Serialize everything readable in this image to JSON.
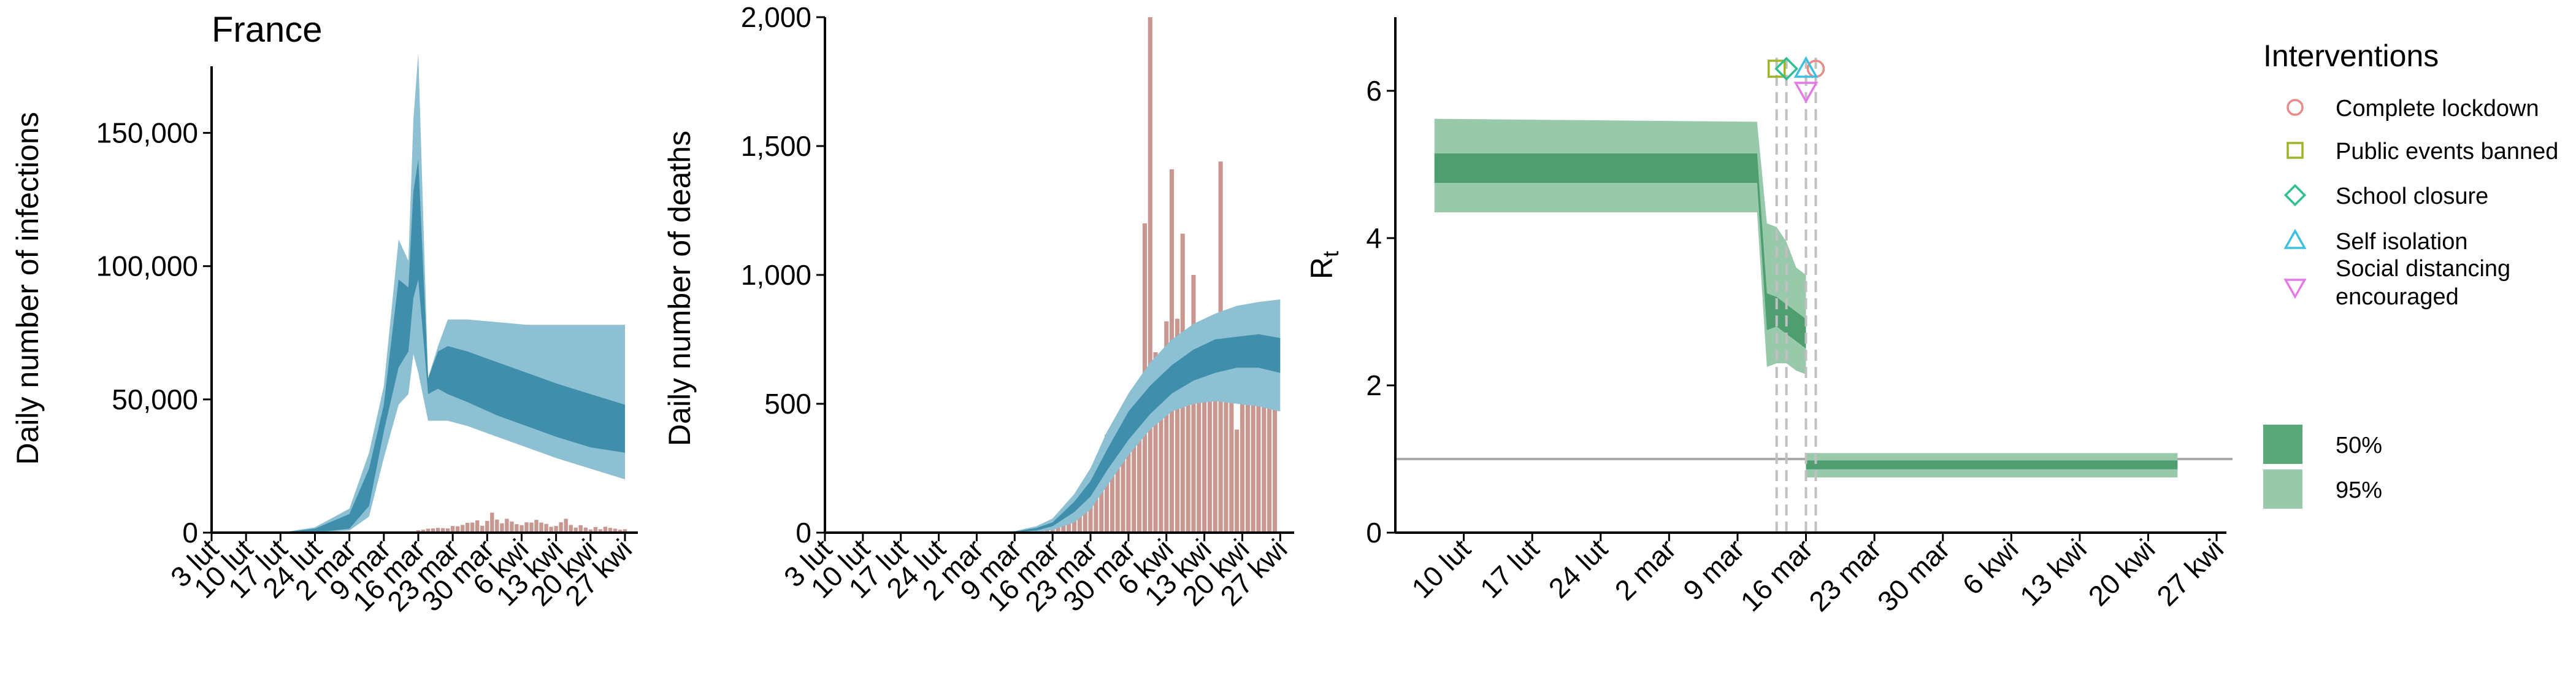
{
  "chart_data": [
    {
      "type": "area",
      "title": "France",
      "ylabel": "Daily number of infections",
      "xlabel": "",
      "ylim": [
        0,
        175000
      ],
      "yticks": [
        0,
        50000,
        100000,
        150000
      ],
      "ytick_labels": [
        "0",
        "50,000",
        "100,000",
        "150,000"
      ],
      "date_range": [
        "2020-02-03",
        "2020-04-29"
      ],
      "xticks": [
        "2020-02-03",
        "2020-02-10",
        "2020-02-17",
        "2020-02-24",
        "2020-03-02",
        "2020-03-09",
        "2020-03-16",
        "2020-03-23",
        "2020-03-30",
        "2020-04-06",
        "2020-04-13",
        "2020-04-20",
        "2020-04-27"
      ],
      "xtick_labels": [
        "3 lut",
        "10 lut",
        "17 lut",
        "24 lut",
        "2 mar",
        "9 mar",
        "16 mar",
        "23 mar",
        "30 mar",
        "6 kwi",
        "13 kwi",
        "20 kwi",
        "27 kwi"
      ],
      "colors": {
        "band95": "#8cc0d2",
        "band50": "#3f8eac",
        "bars": "#c9978f"
      },
      "band95": [
        [
          "2020-02-17",
          0,
          0
        ],
        [
          "2020-02-24",
          0,
          2000
        ],
        [
          "2020-03-02",
          800,
          9000
        ],
        [
          "2020-03-06",
          6000,
          30000
        ],
        [
          "2020-03-09",
          28000,
          55000
        ],
        [
          "2020-03-12",
          48000,
          110000
        ],
        [
          "2020-03-14",
          52000,
          102000
        ],
        [
          "2020-03-15",
          67000,
          155000
        ],
        [
          "2020-03-16",
          60000,
          180000
        ],
        [
          "2020-03-18",
          42000,
          58000
        ],
        [
          "2020-03-20",
          42000,
          70000
        ],
        [
          "2020-03-22",
          42000,
          80000
        ],
        [
          "2020-03-26",
          40000,
          80000
        ],
        [
          "2020-04-01",
          36000,
          79000
        ],
        [
          "2020-04-07",
          32000,
          78000
        ],
        [
          "2020-04-13",
          28000,
          78000
        ],
        [
          "2020-04-20",
          24000,
          78000
        ],
        [
          "2020-04-27",
          20000,
          78000
        ]
      ],
      "band50": [
        [
          "2020-02-17",
          0,
          0
        ],
        [
          "2020-02-24",
          0,
          1500
        ],
        [
          "2020-03-02",
          1500,
          7000
        ],
        [
          "2020-03-06",
          10000,
          24000
        ],
        [
          "2020-03-09",
          38000,
          48000
        ],
        [
          "2020-03-12",
          62000,
          95000
        ],
        [
          "2020-03-14",
          68000,
          92000
        ],
        [
          "2020-03-15",
          88000,
          128000
        ],
        [
          "2020-03-16",
          95000,
          140000
        ],
        [
          "2020-03-18",
          52000,
          58000
        ],
        [
          "2020-03-20",
          54000,
          68000
        ],
        [
          "2020-03-22",
          52000,
          70000
        ],
        [
          "2020-03-26",
          49000,
          68000
        ],
        [
          "2020-04-01",
          44000,
          64000
        ],
        [
          "2020-04-07",
          40000,
          60000
        ],
        [
          "2020-04-13",
          36000,
          56000
        ],
        [
          "2020-04-20",
          32000,
          52000
        ],
        [
          "2020-04-27",
          30000,
          48000
        ]
      ],
      "bars": [
        [
          "2020-03-16",
          900
        ],
        [
          "2020-03-17",
          1100
        ],
        [
          "2020-03-18",
          1500
        ],
        [
          "2020-03-19",
          1600
        ],
        [
          "2020-03-20",
          1800
        ],
        [
          "2020-03-21",
          1700
        ],
        [
          "2020-03-22",
          1600
        ],
        [
          "2020-03-23",
          2500
        ],
        [
          "2020-03-24",
          2400
        ],
        [
          "2020-03-25",
          2900
        ],
        [
          "2020-03-26",
          3700
        ],
        [
          "2020-03-27",
          3800
        ],
        [
          "2020-03-28",
          4600
        ],
        [
          "2020-03-29",
          2600
        ],
        [
          "2020-03-30",
          4400
        ],
        [
          "2020-03-31",
          7500
        ],
        [
          "2020-04-01",
          4900
        ],
        [
          "2020-04-02",
          3500
        ],
        [
          "2020-04-03",
          5200
        ],
        [
          "2020-04-04",
          4200
        ],
        [
          "2020-04-05",
          3200
        ],
        [
          "2020-04-06",
          2800
        ],
        [
          "2020-04-07",
          3900
        ],
        [
          "2020-04-08",
          3800
        ],
        [
          "2020-04-09",
          4800
        ],
        [
          "2020-04-10",
          3800
        ],
        [
          "2020-04-11",
          3300
        ],
        [
          "2020-04-12",
          2200
        ],
        [
          "2020-04-13",
          2500
        ],
        [
          "2020-04-14",
          3900
        ],
        [
          "2020-04-15",
          5200
        ],
        [
          "2020-04-16",
          2900
        ],
        [
          "2020-04-17",
          1900
        ],
        [
          "2020-04-18",
          2800
        ],
        [
          "2020-04-19",
          1900
        ],
        [
          "2020-04-20",
          1200
        ],
        [
          "2020-04-21",
          2100
        ],
        [
          "2020-04-22",
          1300
        ],
        [
          "2020-04-23",
          2200
        ],
        [
          "2020-04-24",
          1800
        ],
        [
          "2020-04-25",
          1500
        ],
        [
          "2020-04-26",
          1100
        ],
        [
          "2020-04-27",
          1300
        ]
      ]
    },
    {
      "type": "bar",
      "title": "",
      "ylabel": "Daily number of deaths",
      "xlabel": "",
      "ylim": [
        0,
        2000
      ],
      "yticks": [
        0,
        500,
        1000,
        1500,
        2000
      ],
      "ytick_labels": [
        "0",
        "500",
        "1,000",
        "1,500",
        "2,000"
      ],
      "date_range": [
        "2020-02-03",
        "2020-04-29"
      ],
      "xticks": [
        "2020-02-03",
        "2020-02-10",
        "2020-02-17",
        "2020-02-24",
        "2020-03-02",
        "2020-03-09",
        "2020-03-16",
        "2020-03-23",
        "2020-03-30",
        "2020-04-06",
        "2020-04-13",
        "2020-04-20",
        "2020-04-27"
      ],
      "xtick_labels": [
        "3 lut",
        "10 lut",
        "17 lut",
        "24 lut",
        "2 mar",
        "9 mar",
        "16 mar",
        "23 mar",
        "30 mar",
        "6 kwi",
        "13 kwi",
        "20 kwi",
        "27 kwi"
      ],
      "colors": {
        "band95": "#8cc0d2",
        "band50": "#3f8eac",
        "bars": "#c9978f"
      },
      "bars": [
        [
          "2020-03-09",
          2
        ],
        [
          "2020-03-10",
          5
        ],
        [
          "2020-03-11",
          10
        ],
        [
          "2020-03-12",
          15
        ],
        [
          "2020-03-13",
          20
        ],
        [
          "2020-03-14",
          25
        ],
        [
          "2020-03-15",
          40
        ],
        [
          "2020-03-16",
          50
        ],
        [
          "2020-03-17",
          70
        ],
        [
          "2020-03-18",
          90
        ],
        [
          "2020-03-19",
          110
        ],
        [
          "2020-03-20",
          80
        ],
        [
          "2020-03-21",
          110
        ],
        [
          "2020-03-22",
          140
        ],
        [
          "2020-03-23",
          185
        ],
        [
          "2020-03-24",
          235
        ],
        [
          "2020-03-25",
          320
        ],
        [
          "2020-03-26",
          380
        ],
        [
          "2020-03-27",
          300
        ],
        [
          "2020-03-28",
          320
        ],
        [
          "2020-03-29",
          300
        ],
        [
          "2020-03-30",
          420
        ],
        [
          "2020-03-31",
          500
        ],
        [
          "2020-04-01",
          560
        ],
        [
          "2020-04-02",
          1200
        ],
        [
          "2020-04-03",
          2000
        ],
        [
          "2020-04-04",
          700
        ],
        [
          "2020-04-05",
          520
        ],
        [
          "2020-04-06",
          820
        ],
        [
          "2020-04-07",
          1410
        ],
        [
          "2020-04-08",
          830
        ],
        [
          "2020-04-09",
          1160
        ],
        [
          "2020-04-10",
          630
        ],
        [
          "2020-04-11",
          1000
        ],
        [
          "2020-04-12",
          560
        ],
        [
          "2020-04-13",
          580
        ],
        [
          "2020-04-14",
          770
        ],
        [
          "2020-04-15",
          700
        ],
        [
          "2020-04-16",
          1440
        ],
        [
          "2020-04-17",
          770
        ],
        [
          "2020-04-18",
          640
        ],
        [
          "2020-04-19",
          400
        ],
        [
          "2020-04-20",
          550
        ],
        [
          "2020-04-21",
          690
        ],
        [
          "2020-04-22",
          580
        ],
        [
          "2020-04-23",
          520
        ],
        [
          "2020-04-24",
          540
        ],
        [
          "2020-04-25",
          560
        ],
        [
          "2020-04-26",
          520
        ]
      ],
      "band95": [
        [
          "2020-03-02",
          0,
          0
        ],
        [
          "2020-03-09",
          1,
          6
        ],
        [
          "2020-03-13",
          3,
          25
        ],
        [
          "2020-03-16",
          10,
          55
        ],
        [
          "2020-03-20",
          40,
          150
        ],
        [
          "2020-03-23",
          90,
          250
        ],
        [
          "2020-03-26",
          180,
          390
        ],
        [
          "2020-03-30",
          300,
          540
        ],
        [
          "2020-04-03",
          400,
          660
        ],
        [
          "2020-04-07",
          470,
          750
        ],
        [
          "2020-04-11",
          500,
          810
        ],
        [
          "2020-04-15",
          510,
          850
        ],
        [
          "2020-04-19",
          500,
          880
        ],
        [
          "2020-04-23",
          490,
          895
        ],
        [
          "2020-04-27",
          470,
          905
        ]
      ],
      "band50": [
        [
          "2020-03-02",
          0,
          0
        ],
        [
          "2020-03-09",
          2,
          4
        ],
        [
          "2020-03-13",
          8,
          18
        ],
        [
          "2020-03-16",
          25,
          40
        ],
        [
          "2020-03-20",
          80,
          120
        ],
        [
          "2020-03-23",
          140,
          200
        ],
        [
          "2020-03-26",
          240,
          320
        ],
        [
          "2020-03-30",
          360,
          470
        ],
        [
          "2020-04-03",
          460,
          570
        ],
        [
          "2020-04-07",
          540,
          650
        ],
        [
          "2020-04-11",
          590,
          710
        ],
        [
          "2020-04-15",
          620,
          750
        ],
        [
          "2020-04-19",
          640,
          760
        ],
        [
          "2020-04-23",
          640,
          770
        ],
        [
          "2020-04-27",
          620,
          755
        ]
      ]
    },
    {
      "type": "area",
      "title": "",
      "ylabel": "R",
      "ylabel_subscript": "t",
      "xlabel": "",
      "ylim": [
        0,
        7
      ],
      "yticks": [
        0,
        2,
        4,
        6
      ],
      "ytick_labels": [
        "0",
        "2",
        "4",
        "6"
      ],
      "date_range": [
        "2020-02-03",
        "2020-04-28"
      ],
      "xticks": [
        "2020-02-10",
        "2020-02-17",
        "2020-02-24",
        "2020-03-02",
        "2020-03-09",
        "2020-03-16",
        "2020-03-23",
        "2020-03-30",
        "2020-04-06",
        "2020-04-13",
        "2020-04-20",
        "2020-04-27"
      ],
      "xtick_labels": [
        "10 lut",
        "17 lut",
        "24 lut",
        "2 mar",
        "9 mar",
        "16 mar",
        "23 mar",
        "30 mar",
        "6 kwi",
        "13 kwi",
        "20 kwi",
        "27 kwi"
      ],
      "reference_line": 1,
      "colors": {
        "band95": "#99c9ab",
        "band50": "#4e9e70",
        "reference": "#aaaaaa",
        "vlines": "#c0c0c0"
      },
      "band95": [
        [
          "2020-02-07",
          4.35,
          5.62
        ],
        [
          "2020-03-11",
          4.35,
          5.58
        ],
        [
          "2020-03-11",
          4.35,
          5.58
        ],
        [
          "2020-03-12",
          2.25,
          4.2
        ],
        [
          "2020-03-13",
          2.3,
          4.15
        ],
        [
          "2020-03-14",
          2.3,
          3.95
        ],
        [
          "2020-03-15",
          2.2,
          3.6
        ],
        [
          "2020-03-16",
          2.15,
          3.5
        ],
        [
          "2020-03-16",
          0.75,
          1.08
        ],
        [
          "2020-04-23",
          0.75,
          1.08
        ]
      ],
      "band50": [
        [
          "2020-02-07",
          4.75,
          5.15
        ],
        [
          "2020-03-11",
          4.75,
          5.15
        ],
        [
          "2020-03-12",
          2.75,
          3.25
        ],
        [
          "2020-03-13",
          2.8,
          3.2
        ],
        [
          "2020-03-14",
          2.7,
          3.1
        ],
        [
          "2020-03-15",
          2.6,
          3.0
        ],
        [
          "2020-03-16",
          2.5,
          2.9
        ],
        [
          "2020-03-16",
          0.86,
          0.98
        ],
        [
          "2020-04-23",
          0.86,
          0.98
        ]
      ],
      "interventions": [
        {
          "name": "Complete lockdown",
          "date": "2020-03-17",
          "marker": "circle",
          "color": "#e88a86",
          "y": 6.3
        },
        {
          "name": "Public events banned",
          "date": "2020-03-13",
          "marker": "square",
          "color": "#9fb427",
          "y": 6.3
        },
        {
          "name": "School closure",
          "date": "2020-03-14",
          "marker": "diamond",
          "color": "#2ec08f",
          "y": 6.3
        },
        {
          "name": "Self isolation",
          "date": "2020-03-16",
          "marker": "triangle-up",
          "color": "#3dbfe0",
          "y": 6.3
        },
        {
          "name": "Social distancing encouraged",
          "date": "2020-03-16",
          "marker": "triangle-down",
          "color": "#e57ae6",
          "y": 6.0
        }
      ],
      "vline_dates": [
        "2020-03-13",
        "2020-03-14",
        "2020-03-16",
        "2020-03-17"
      ]
    }
  ],
  "legend": {
    "title": "Interventions",
    "items": [
      {
        "label": "Complete lockdown",
        "marker": "circle",
        "color": "#e88a86"
      },
      {
        "label": "Public events banned",
        "marker": "square",
        "color": "#9fb427"
      },
      {
        "label": "School closure",
        "marker": "diamond",
        "color": "#2ec08f"
      },
      {
        "label": "Self isolation",
        "marker": "triangle-up",
        "color": "#3dbfe0"
      },
      {
        "label_lines": [
          "Social distancing",
          " encouraged"
        ],
        "marker": "triangle-down",
        "color": "#e57ae6"
      }
    ],
    "ci_items": [
      {
        "label": "50%",
        "color": "#5aa879"
      },
      {
        "label": "95%",
        "color": "#99c9ab"
      }
    ]
  }
}
